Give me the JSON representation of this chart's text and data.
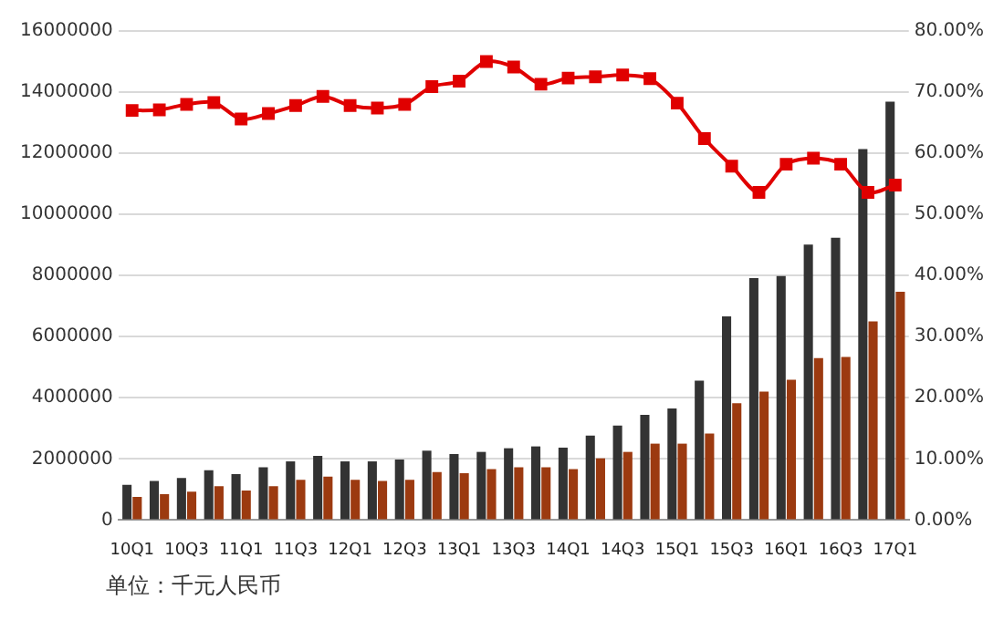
{
  "chart_data": {
    "type": "bar",
    "categories": [
      "10Q1",
      null,
      "10Q3",
      null,
      "11Q1",
      null,
      "11Q3",
      null,
      "12Q1",
      null,
      "12Q3",
      null,
      "13Q1",
      null,
      "13Q3",
      null,
      "14Q1",
      null,
      "14Q3",
      null,
      "15Q1",
      null,
      "15Q3",
      null,
      "16Q1",
      null,
      "16Q3",
      null,
      "17Q1"
    ],
    "series": [
      {
        "color": "#333333",
        "values": [
          1150000,
          1280000,
          1380000,
          1630000,
          1500000,
          1730000,
          1920000,
          2100000,
          1920000,
          1920000,
          1980000,
          2270000,
          2160000,
          2230000,
          2350000,
          2410000,
          2370000,
          2760000,
          3090000,
          3440000,
          3650000,
          4560000,
          6660000,
          7920000,
          7980000,
          9010000,
          9240000,
          12140000,
          13690000
        ]
      },
      {
        "color": "#9c3a10",
        "values": [
          760000,
          850000,
          930000,
          1110000,
          970000,
          1110000,
          1320000,
          1420000,
          1320000,
          1280000,
          1320000,
          1570000,
          1530000,
          1670000,
          1730000,
          1730000,
          1670000,
          2020000,
          2230000,
          2500000,
          2500000,
          2830000,
          3820000,
          4200000,
          4590000,
          5300000,
          5340000,
          6500000,
          7470000
        ]
      },
      {
        "type": "line",
        "axis": "y2",
        "color": "#e00000",
        "marker": "square",
        "values": [
          67.0,
          67.1,
          68.0,
          68.3,
          65.6,
          66.5,
          67.8,
          69.3,
          67.8,
          67.4,
          68.0,
          70.9,
          71.8,
          75.0,
          74.1,
          71.3,
          72.3,
          72.5,
          72.8,
          72.2,
          68.2,
          62.4,
          57.9,
          53.6,
          58.2,
          59.2,
          58.2,
          53.6,
          54.8
        ]
      }
    ],
    "ylim": [
      0,
      16000000
    ],
    "yticks": [
      0,
      2000000,
      4000000,
      6000000,
      8000000,
      10000000,
      12000000,
      14000000,
      16000000
    ],
    "y2lim": [
      0,
      80
    ],
    "y2ticks": [
      {
        "value": 0,
        "label": "0.00%"
      },
      {
        "value": 10,
        "label": "10.00%"
      },
      {
        "value": 20,
        "label": "20.00%"
      },
      {
        "value": 30,
        "label": "30.00%"
      },
      {
        "value": 40,
        "label": "40.00%"
      },
      {
        "value": 50,
        "label": "50.00%"
      },
      {
        "value": 60,
        "label": "60.00%"
      },
      {
        "value": 70,
        "label": "70.00%"
      },
      {
        "value": 80,
        "label": "80.00%"
      }
    ],
    "grid": "y",
    "annotations": [
      "单位：千元人民币"
    ]
  }
}
